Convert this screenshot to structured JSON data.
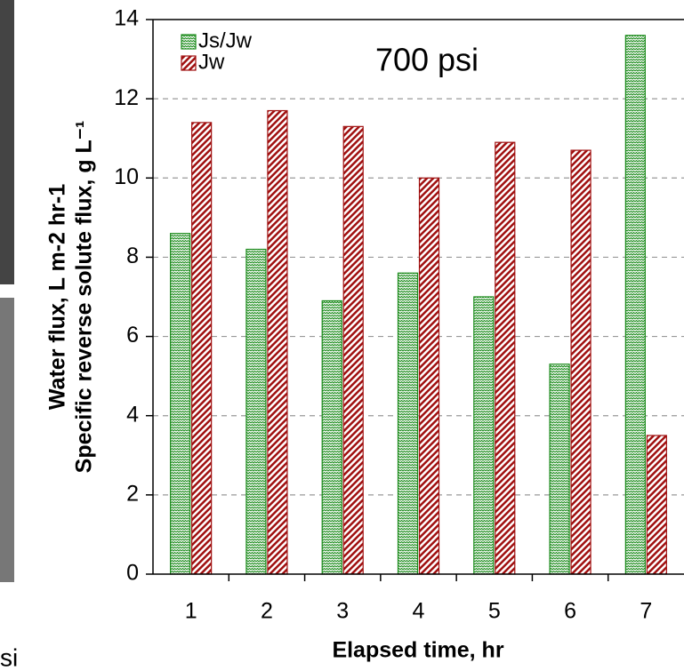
{
  "chart_data": {
    "type": "bar",
    "x_label": "Elapsed time, hr",
    "y_label_lines": [
      "Water flux, L m-2 hr-1",
      "Specific reverse solute flux, g L⁻¹"
    ],
    "annotations": [
      "700 psi",
      "si"
    ],
    "categories": [
      "1",
      "2",
      "3",
      "4",
      "5",
      "6",
      "7"
    ],
    "series": [
      {
        "name": "Js/Jw",
        "color": "#1a8a1a",
        "values": [
          8.6,
          8.2,
          6.9,
          7.6,
          7.0,
          5.3,
          13.6
        ]
      },
      {
        "name": "Jw",
        "color": "#a01010",
        "values": [
          11.4,
          11.7,
          11.3,
          10.0,
          10.9,
          10.7,
          3.5
        ]
      }
    ],
    "ylim": [
      0,
      14
    ],
    "yticks": [
      0,
      2,
      4,
      6,
      8,
      10,
      12,
      14
    ],
    "grid": true,
    "legend": "top-left"
  }
}
